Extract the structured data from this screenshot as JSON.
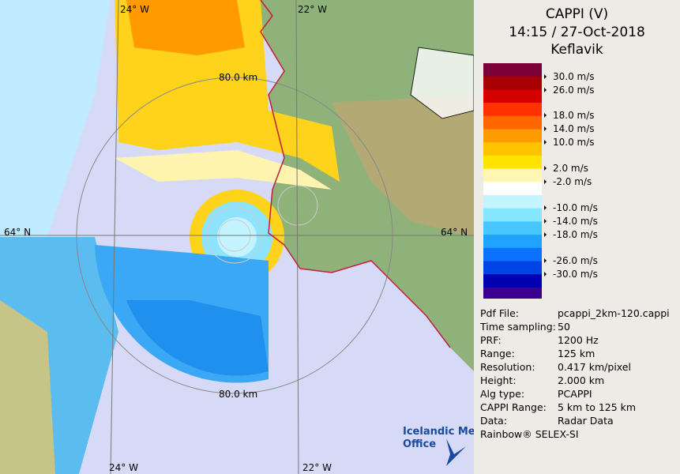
{
  "map": {
    "labels": {
      "lon_top_left": "24° W",
      "lon_top_right": "22° W",
      "range_top": "80.0 km",
      "lat_left": "64° N",
      "lat_right": "64° N",
      "range_bottom": "80.0 km",
      "lon_bottom_left": "24° W",
      "lon_bottom_right": "22° W"
    }
  },
  "panel": {
    "product": "CAPPI (V)",
    "time": "14:15 / 27-Oct-2018",
    "site": "Keflavik",
    "legend": {
      "colors": [
        "#7c0038",
        "#a80000",
        "#d40000",
        "#ff3300",
        "#ff6600",
        "#ff9a00",
        "#ffc400",
        "#ffe400",
        "#fff6b4",
        "#ffffff",
        "#c4f4ff",
        "#86e6ff",
        "#46c8ff",
        "#20a2ff",
        "#0a72ff",
        "#0044e6",
        "#0000b0",
        "#3c0090"
      ],
      "labels": [
        "30.0 m/s",
        "26.0 m/s",
        "18.0 m/s",
        "14.0 m/s",
        "10.0 m/s",
        "2.0 m/s",
        "-2.0 m/s",
        "-10.0 m/s",
        "-14.0 m/s",
        "-18.0 m/s",
        "-26.0 m/s",
        "-30.0 m/s"
      ]
    },
    "info": [
      [
        "Pdf File:",
        "pcappi_2km-120.cappi"
      ],
      [
        "Time sampling:",
        "50"
      ],
      [
        "PRF:",
        "1200 Hz"
      ],
      [
        "Range:",
        "125 km"
      ],
      [
        "Resolution:",
        "0.417 km/pixel"
      ],
      [
        "Height:",
        "2.000 km"
      ],
      [
        "Alg type:",
        "PCAPPI"
      ],
      [
        "CAPPI Range:",
        "5 km to 125 km"
      ],
      [
        "Data:",
        "Radar Data"
      ]
    ],
    "footer": "Rainbow® SELEX-SI"
  },
  "logo": {
    "line1": "Icelandic Met",
    "line2": "Office"
  }
}
